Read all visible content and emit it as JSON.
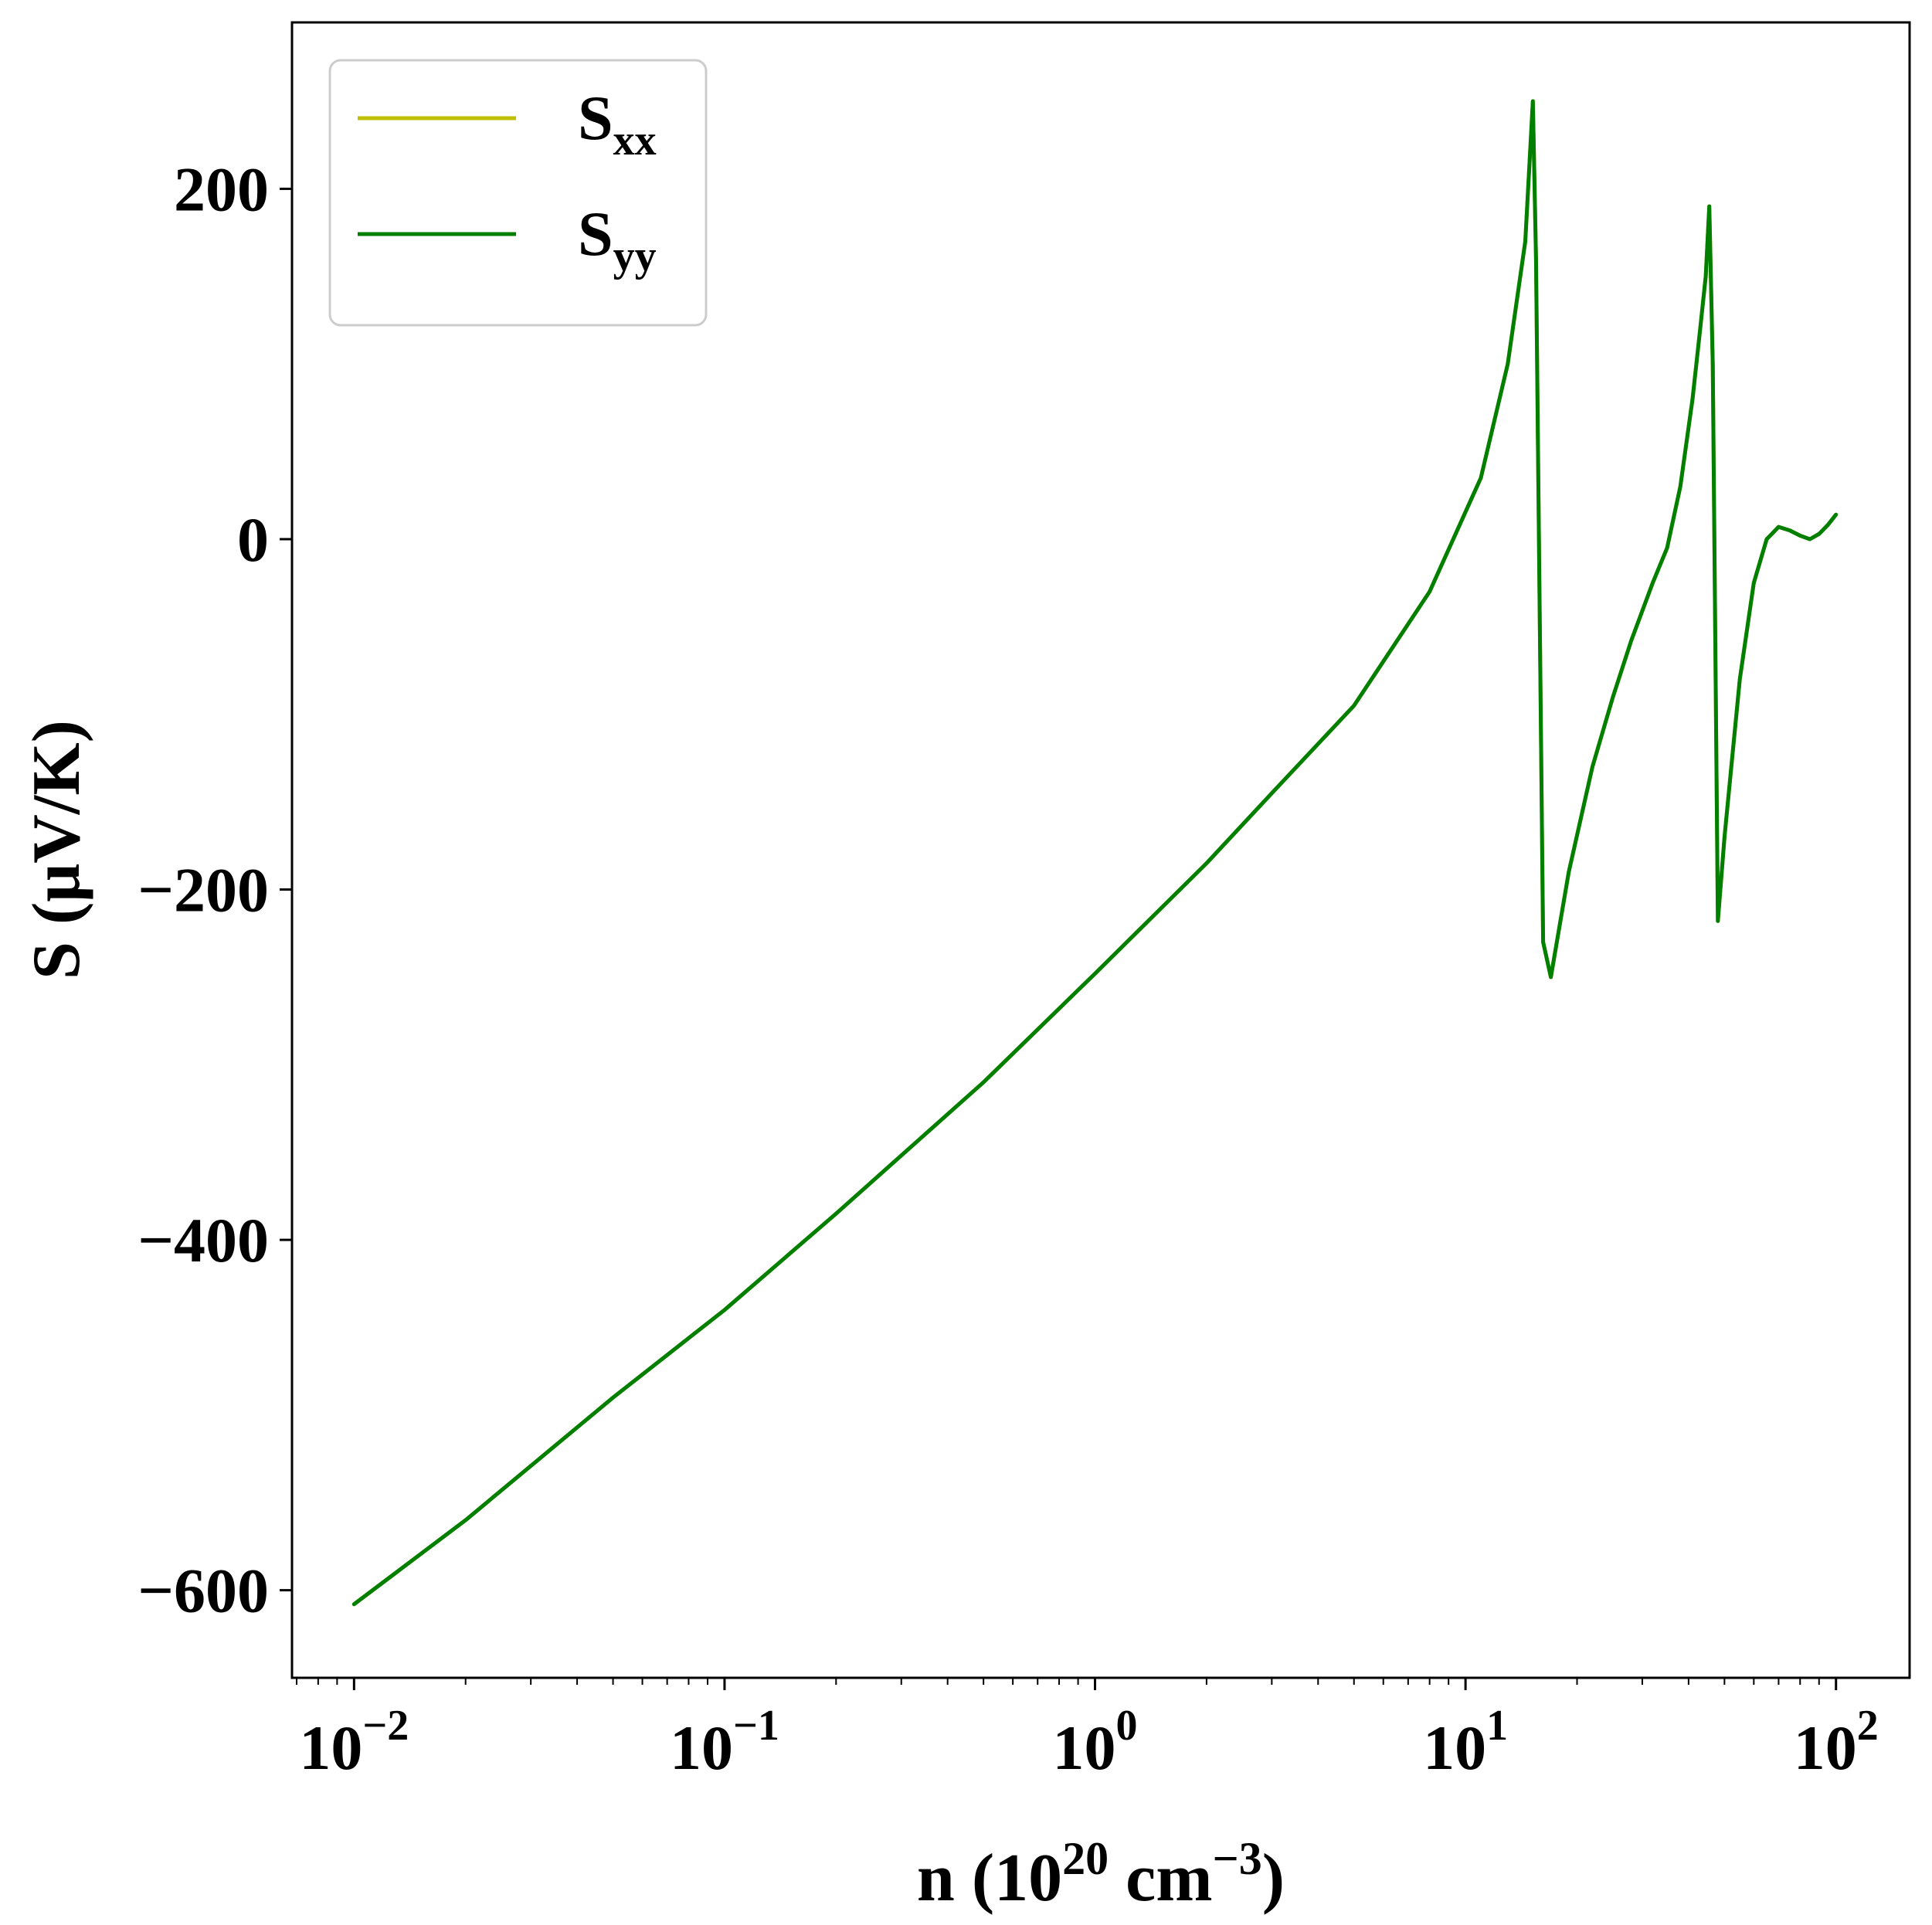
{
  "chart_data": {
    "type": "line",
    "xscale": "log",
    "xlim": [
      0.0068,
      158
    ],
    "ylim": [
      -650,
      295
    ],
    "grid": false,
    "legend_position": "top-left",
    "xlabel": {
      "main": "n (10",
      "exp1": "20",
      "mid": " cm",
      "exp2": "−3",
      "end": ")"
    },
    "ylabel": "S (μV/K)",
    "xticks": [
      {
        "value": 0.01,
        "base": "10",
        "exp": "−2"
      },
      {
        "value": 0.1,
        "base": "10",
        "exp": "−1"
      },
      {
        "value": 1,
        "base": "10",
        "exp": "0"
      },
      {
        "value": 10,
        "base": "10",
        "exp": "1"
      },
      {
        "value": 100,
        "base": "10",
        "exp": "2"
      }
    ],
    "yticks": [
      {
        "value": 200,
        "label": "200"
      },
      {
        "value": 0,
        "label": "0"
      },
      {
        "value": -200,
        "label": "−200"
      },
      {
        "value": -400,
        "label": "−400"
      },
      {
        "value": -600,
        "label": "−600"
      }
    ],
    "series": [
      {
        "name": "S",
        "sub": "xx",
        "color": "#bfbf00",
        "x": [
          0.01,
          0.02,
          0.05,
          0.1,
          0.2,
          0.5,
          1,
          2,
          3,
          5,
          8,
          11,
          13,
          14.5,
          15.2,
          15.5,
          16.2,
          17,
          19,
          22,
          25,
          28,
          32,
          35,
          38,
          41,
          43,
          44.5,
          45.5,
          46.5,
          48,
          50,
          55,
          60,
          65,
          70,
          75,
          80,
          85,
          90,
          95,
          100
        ],
        "y": [
          -608,
          -560,
          -490,
          -440,
          -385,
          -310,
          -248,
          -185,
          -145,
          -95,
          -30,
          35,
          100,
          170,
          250,
          160,
          -230,
          -250,
          -190,
          -130,
          -90,
          -58,
          -25,
          -5,
          30,
          80,
          120,
          150,
          190,
          100,
          -218,
          -170,
          -80,
          -25,
          0,
          7,
          5,
          2,
          0,
          3,
          8,
          14
        ]
      },
      {
        "name": "S",
        "sub": "yy",
        "color": "#007f00",
        "x": [
          0.01,
          0.02,
          0.05,
          0.1,
          0.2,
          0.5,
          1,
          2,
          3,
          5,
          8,
          11,
          13,
          14.5,
          15.2,
          15.5,
          16.2,
          17,
          19,
          22,
          25,
          28,
          32,
          35,
          38,
          41,
          43,
          44.5,
          45.5,
          46.5,
          48,
          50,
          55,
          60,
          65,
          70,
          75,
          80,
          85,
          90,
          95,
          100
        ],
        "y": [
          -608,
          -560,
          -490,
          -440,
          -385,
          -310,
          -248,
          -185,
          -145,
          -95,
          -30,
          35,
          100,
          170,
          250,
          160,
          -230,
          -250,
          -190,
          -130,
          -90,
          -58,
          -25,
          -5,
          30,
          80,
          120,
          150,
          190,
          100,
          -218,
          -170,
          -80,
          -25,
          0,
          7,
          5,
          2,
          0,
          3,
          8,
          14
        ]
      }
    ]
  }
}
